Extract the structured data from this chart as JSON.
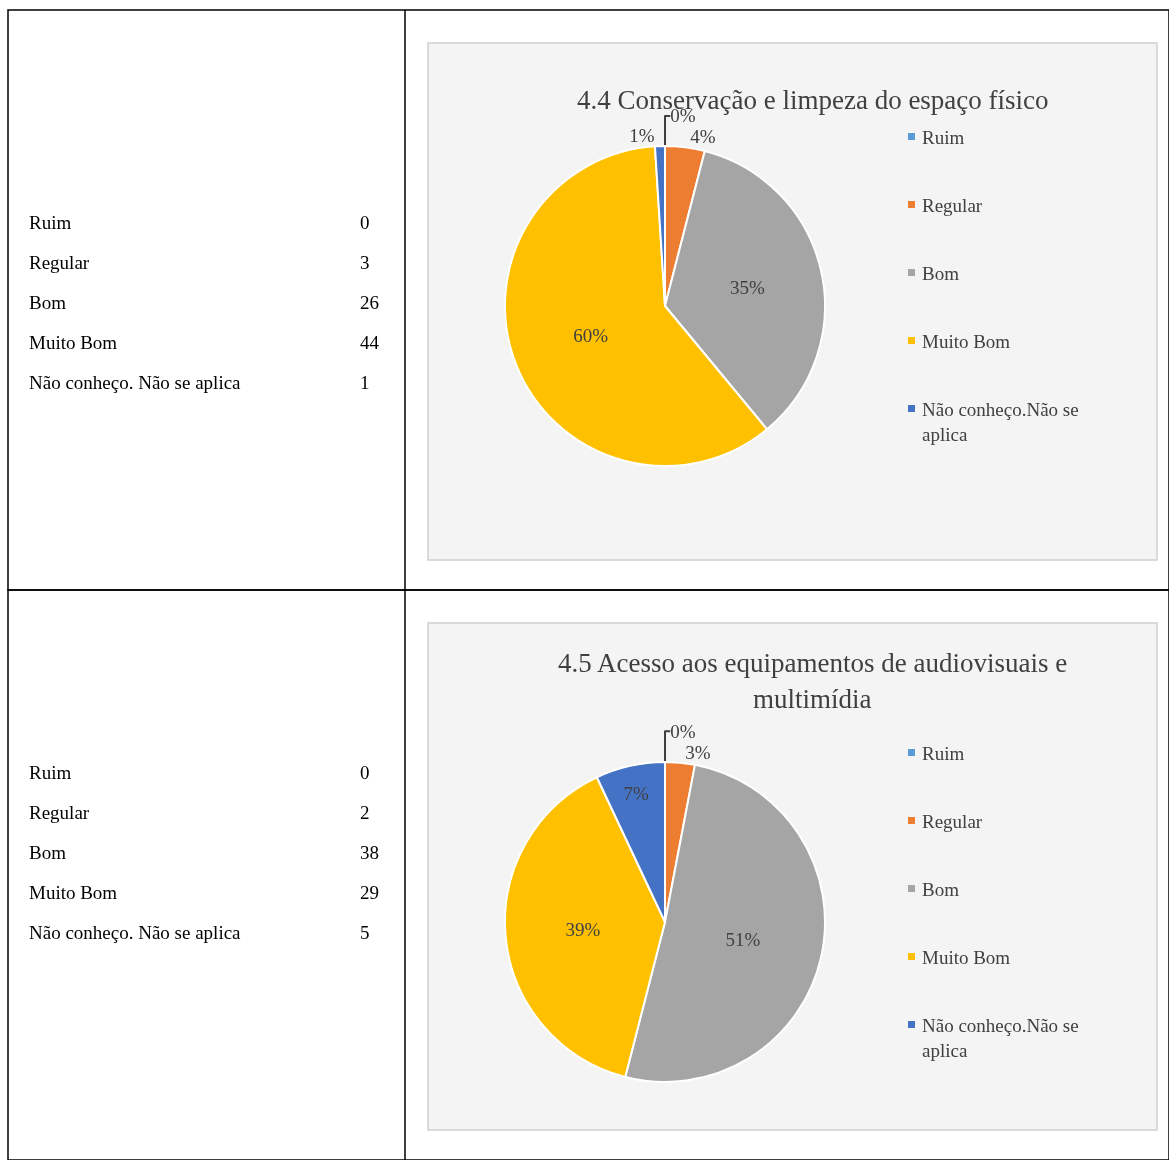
{
  "chart_data": [
    {
      "type": "other",
      "categories": [
        "Ruim",
        "Regular",
        "Bom",
        "Muito Bom",
        "Não conheço. Não se aplica"
      ],
      "values": [
        0,
        3,
        26,
        44,
        1
      ],
      "data_labels": true
    },
    {
      "type": "pie",
      "title": "4.4 Conservação e limpeza do espaço físico",
      "categories": [
        "Ruim",
        "Regular",
        "Bom",
        "Muito Bom",
        "Não conheço.Não se aplica"
      ],
      "values": [
        0,
        4,
        35,
        60,
        1
      ],
      "value_labels": [
        "0%",
        "4%",
        "35%",
        "60%",
        "1%"
      ],
      "colors": [
        "#5b9bd5",
        "#ed7d31",
        "#a5a5a5",
        "#ffc000",
        "#4472c4"
      ],
      "legend": "right"
    },
    {
      "type": "other",
      "categories": [
        "Ruim",
        "Regular",
        "Bom",
        "Muito Bom",
        "Não conheço. Não se aplica"
      ],
      "values": [
        0,
        2,
        38,
        29,
        5
      ],
      "data_labels": true
    },
    {
      "type": "pie",
      "title": "4.5 Acesso aos equipamentos de audiovisuais e multimídia",
      "categories": [
        "Ruim",
        "Regular",
        "Bom",
        "Muito Bom",
        "Não conheço.Não se aplica"
      ],
      "values": [
        0,
        3,
        51,
        39,
        7
      ],
      "value_labels": [
        "0%",
        "3%",
        "51%",
        "39%",
        "7%"
      ],
      "colors": [
        "#5b9bd5",
        "#ed7d31",
        "#a5a5a5",
        "#ffc000",
        "#4472c4"
      ],
      "legend": "right"
    }
  ]
}
